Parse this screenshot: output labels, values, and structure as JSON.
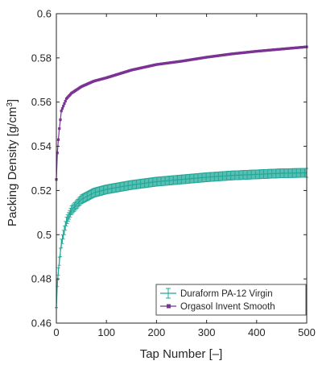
{
  "chart_data": {
    "type": "line",
    "title": "",
    "xlabel": "Tap Number [–]",
    "ylabel_main": "Packing Density [g/cm",
    "ylabel_sup": "3",
    "ylabel_end": "]",
    "xlim": [
      0,
      500
    ],
    "ylim": [
      0.46,
      0.6
    ],
    "xticks": [
      0,
      100,
      200,
      300,
      400,
      500
    ],
    "xtick_labels": [
      "0",
      "100",
      "200",
      "300",
      "400",
      "500"
    ],
    "yticks": [
      0.46,
      0.48,
      0.5,
      0.52,
      0.54,
      0.56,
      0.58,
      0.6
    ],
    "ytick_labels": [
      "0.46",
      "0.48",
      "0.5",
      "0.52",
      "0.54",
      "0.56",
      "0.58",
      "0.6"
    ],
    "grid": false,
    "legend_position": "bottom-right",
    "x": [
      0,
      2,
      5,
      10,
      20,
      30,
      50,
      75,
      100,
      150,
      200,
      250,
      300,
      350,
      400,
      450,
      500
    ],
    "series": [
      {
        "name": "Duraform PA-12 Virgin",
        "color": "#20a898",
        "marker": "error-bar",
        "values": [
          0.467,
          0.478,
          0.486,
          0.496,
          0.506,
          0.511,
          0.516,
          0.519,
          0.5205,
          0.5225,
          0.524,
          0.525,
          0.526,
          0.5268,
          0.5273,
          0.5278,
          0.528
        ],
        "error": [
          0.0,
          0.0015,
          0.0018,
          0.002,
          0.002,
          0.002,
          0.002,
          0.002,
          0.002,
          0.002,
          0.002,
          0.002,
          0.002,
          0.002,
          0.002,
          0.002,
          0.002
        ]
      },
      {
        "name": "Orgasol Invent Smooth",
        "color": "#7b3294",
        "marker": "square",
        "values": [
          0.525,
          0.537,
          0.546,
          0.556,
          0.5615,
          0.564,
          0.567,
          0.5695,
          0.571,
          0.5745,
          0.577,
          0.5785,
          0.5803,
          0.5818,
          0.583,
          0.584,
          0.585
        ]
      }
    ]
  }
}
